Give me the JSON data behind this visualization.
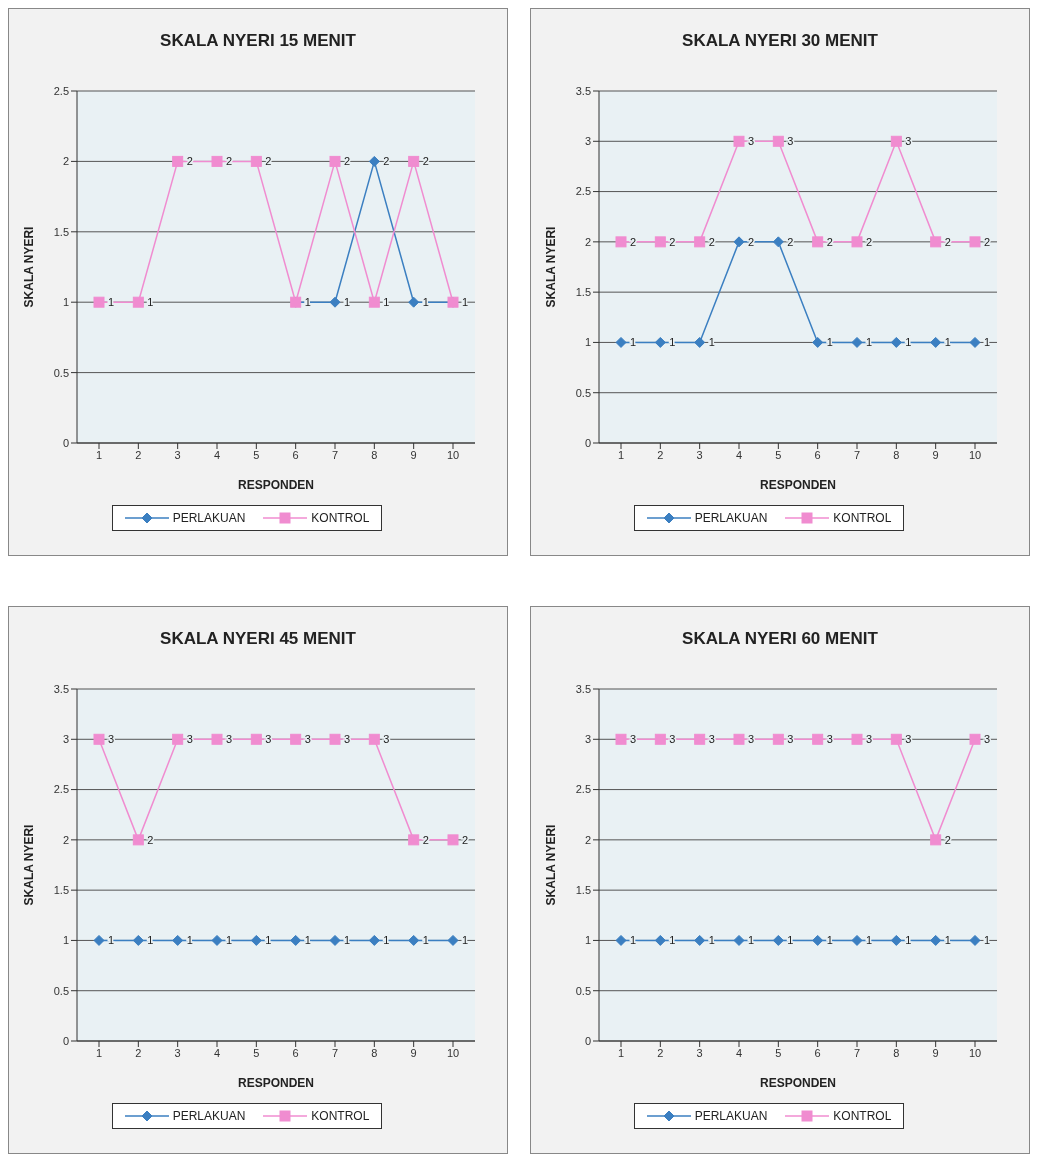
{
  "chart_data": [
    {
      "type": "line",
      "title": "SKALA NYERI 15 MENIT",
      "xlabel": "RESPONDEN",
      "ylabel": "SKALA NYERI",
      "categories": [
        "1",
        "2",
        "3",
        "4",
        "5",
        "6",
        "7",
        "8",
        "9",
        "10"
      ],
      "ylim": [
        0,
        2.5
      ],
      "yticks": [
        0,
        0.5,
        1,
        1.5,
        2,
        2.5
      ],
      "grid": "y",
      "legend": "bottom",
      "data_labels": true,
      "series": [
        {
          "name": "PERLAKUAN",
          "color": "#3b7fc1",
          "marker": "diamond",
          "values": [
            null,
            null,
            null,
            null,
            null,
            1,
            1,
            2,
            1,
            1
          ]
        },
        {
          "name": "KONTROL",
          "color": "#f08cd0",
          "marker": "square",
          "values": [
            1,
            1,
            2,
            2,
            2,
            1,
            2,
            1,
            2,
            1
          ],
          "value_labels": [
            "1",
            "1",
            "2",
            "2",
            "2",
            null,
            "2",
            "1",
            "2",
            null
          ]
        }
      ]
    },
    {
      "type": "line",
      "title": "SKALA NYERI 30 MENIT",
      "xlabel": "RESPONDEN",
      "ylabel": "SKALA NYERI",
      "categories": [
        "1",
        "2",
        "3",
        "4",
        "5",
        "6",
        "7",
        "8",
        "9",
        "10"
      ],
      "ylim": [
        0,
        3.5
      ],
      "yticks": [
        0,
        0.5,
        1,
        1.5,
        2,
        2.5,
        3,
        3.5
      ],
      "grid": "y",
      "legend": "bottom",
      "data_labels": true,
      "series": [
        {
          "name": "PERLAKUAN",
          "color": "#3b7fc1",
          "marker": "diamond",
          "values": [
            1,
            1,
            1,
            2,
            2,
            1,
            1,
            1,
            1,
            1
          ]
        },
        {
          "name": "KONTROL",
          "color": "#f08cd0",
          "marker": "square",
          "values": [
            2,
            2,
            2,
            3,
            3,
            2,
            2,
            3,
            2,
            2
          ]
        }
      ]
    },
    {
      "type": "line",
      "title": "SKALA NYERI 45 MENIT",
      "xlabel": "RESPONDEN",
      "ylabel": "SKALA NYERI",
      "categories": [
        "1",
        "2",
        "3",
        "4",
        "5",
        "6",
        "7",
        "8",
        "9",
        "10"
      ],
      "ylim": [
        0,
        3.5
      ],
      "yticks": [
        0,
        0.5,
        1,
        1.5,
        2,
        2.5,
        3,
        3.5
      ],
      "grid": "y",
      "legend": "bottom",
      "data_labels": true,
      "series": [
        {
          "name": "PERLAKUAN",
          "color": "#3b7fc1",
          "marker": "diamond",
          "values": [
            1,
            1,
            1,
            1,
            1,
            1,
            1,
            1,
            1,
            1
          ]
        },
        {
          "name": "KONTROL",
          "color": "#f08cd0",
          "marker": "square",
          "values": [
            3,
            2,
            3,
            3,
            3,
            3,
            3,
            3,
            2,
            2
          ]
        }
      ]
    },
    {
      "type": "line",
      "title": "SKALA NYERI 60 MENIT",
      "xlabel": "RESPONDEN",
      "ylabel": "SKALA NYERI",
      "categories": [
        "1",
        "2",
        "3",
        "4",
        "5",
        "6",
        "7",
        "8",
        "9",
        "10"
      ],
      "ylim": [
        0,
        3.5
      ],
      "yticks": [
        0,
        0.5,
        1,
        1.5,
        2,
        2.5,
        3,
        3.5
      ],
      "grid": "y",
      "legend": "bottom",
      "data_labels": true,
      "series": [
        {
          "name": "PERLAKUAN",
          "color": "#3b7fc1",
          "marker": "diamond",
          "values": [
            1,
            1,
            1,
            1,
            1,
            1,
            1,
            1,
            1,
            1
          ]
        },
        {
          "name": "KONTROL",
          "color": "#f08cd0",
          "marker": "square",
          "values": [
            3,
            3,
            3,
            3,
            3,
            3,
            3,
            3,
            2,
            3
          ]
        }
      ]
    }
  ]
}
